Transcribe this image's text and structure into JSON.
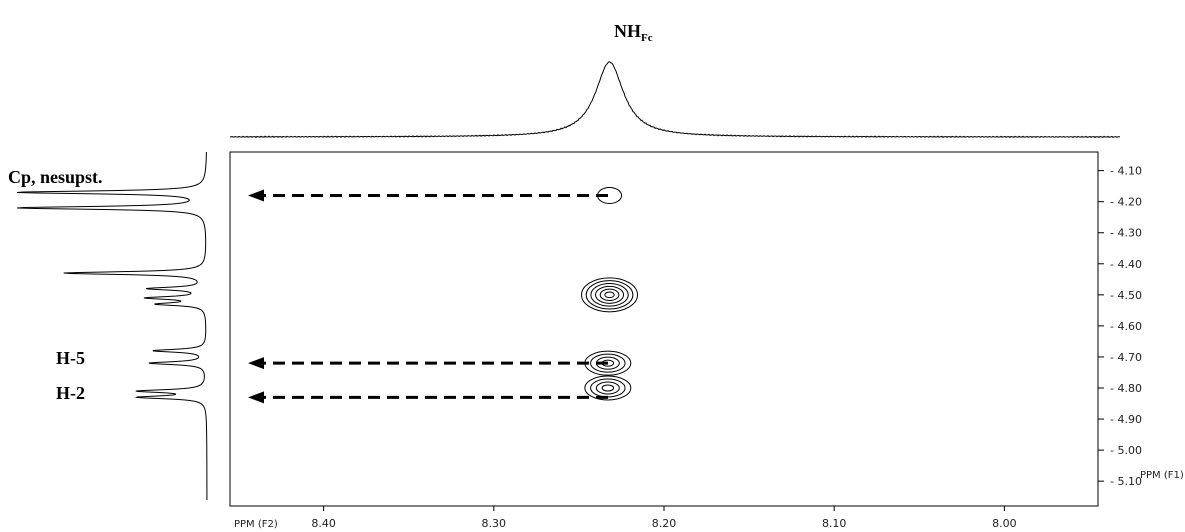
{
  "chart_data": {
    "type": "contour",
    "f2_axis": {
      "label": "PPM (F2)",
      "ticks": [
        8.4,
        8.3,
        8.2,
        8.1,
        8.0
      ],
      "range": [
        8.455,
        7.945
      ],
      "reversed": true
    },
    "f1_axis": {
      "label": "PPM (F1)",
      "ticks": [
        4.1,
        4.2,
        4.3,
        4.4,
        4.5,
        4.6,
        4.7,
        4.8,
        4.9,
        5.0,
        5.1
      ],
      "range": [
        4.04,
        5.18
      ],
      "position": "right"
    },
    "top_projection": {
      "peaks": [
        {
          "ppm": 8.232,
          "height": 1.0,
          "width": 0.01
        }
      ],
      "label_main": "NH",
      "label_sub": "Fc"
    },
    "left_projection": {
      "peaks": [
        {
          "ppm": 4.17,
          "height": 1.0
        },
        {
          "ppm": 4.22,
          "height": 1.0
        },
        {
          "ppm": 4.43,
          "height": 0.75
        },
        {
          "ppm": 4.48,
          "height": 0.3
        },
        {
          "ppm": 4.51,
          "height": 0.3
        },
        {
          "ppm": 4.53,
          "height": 0.25
        },
        {
          "ppm": 4.68,
          "height": 0.28
        },
        {
          "ppm": 4.72,
          "height": 0.3
        },
        {
          "ppm": 4.81,
          "height": 0.35
        },
        {
          "ppm": 4.83,
          "height": 0.35
        }
      ]
    },
    "cross_peaks": [
      {
        "f2": 8.232,
        "f1": 4.18,
        "levels": 1
      },
      {
        "f2": 8.232,
        "f1": 4.5,
        "levels": 6
      },
      {
        "f2": 8.233,
        "f1": 4.72,
        "levels": 4
      },
      {
        "f2": 8.233,
        "f1": 4.8,
        "levels": 4
      }
    ],
    "annotations": [
      {
        "label": "Cp, nesupst.",
        "f1": 4.18
      },
      {
        "label": "H-5",
        "f1": 4.72
      },
      {
        "label": "H-2",
        "f1": 4.83
      }
    ]
  }
}
